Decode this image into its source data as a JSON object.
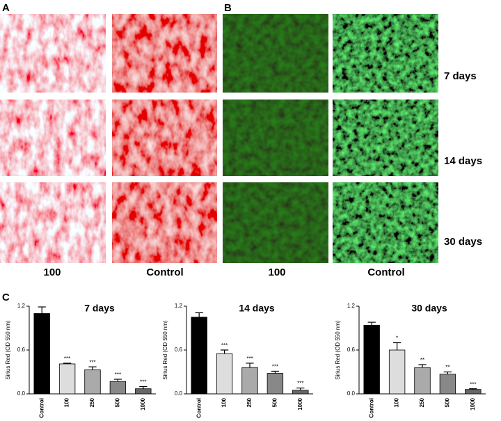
{
  "panel_labels": [
    "A",
    "B",
    "C"
  ],
  "image_rows": [
    "7 days",
    "14 days",
    "30 days"
  ],
  "image_columns": [
    "100",
    "Control",
    "100",
    "Control"
  ],
  "chart_data": [
    {
      "type": "bar",
      "title": "7 days",
      "y_label": "Sirius Red (OD 550 nm)",
      "categories": [
        "Control",
        "100",
        "250",
        "500",
        "1000"
      ],
      "values": [
        1.1,
        0.41,
        0.33,
        0.17,
        0.07
      ],
      "errors": [
        0.09,
        0.01,
        0.04,
        0.03,
        0.03
      ],
      "colors": [
        "#000000",
        "#dddddd",
        "#aaaaaa",
        "#888888",
        "#666666"
      ],
      "annotations": [
        null,
        "***",
        "***",
        "***",
        "***"
      ],
      "ylim": [
        0,
        1.2
      ],
      "yticks": [
        {
          "value": 0,
          "label": "0.0"
        },
        0.6,
        1.2
      ]
    },
    {
      "type": "bar",
      "title": "14 days",
      "y_label": "Sirius Red (OD 550 nm)",
      "categories": [
        "Control",
        "100",
        "250",
        "500",
        "1000"
      ],
      "values": [
        1.05,
        0.55,
        0.36,
        0.28,
        0.05
      ],
      "errors": [
        0.06,
        0.05,
        0.06,
        0.03,
        0.03
      ],
      "colors": [
        "#000000",
        "#dddddd",
        "#aaaaaa",
        "#888888",
        "#666666"
      ],
      "annotations": [
        null,
        "***",
        "***",
        "***",
        "***"
      ],
      "ylim": [
        0,
        1.2
      ],
      "yticks": [
        {
          "value": 0,
          "label": "0.0"
        },
        0.6,
        1.2
      ]
    },
    {
      "type": "bar",
      "title": "30 days",
      "y_label": "Sirius Red (OD 550 nm)",
      "categories": [
        "Control",
        "100",
        "250",
        "500",
        "1000"
      ],
      "values": [
        0.94,
        0.6,
        0.36,
        0.27,
        0.06
      ],
      "errors": [
        0.04,
        0.1,
        0.04,
        0.03,
        0.01
      ],
      "colors": [
        "#000000",
        "#dddddd",
        "#aaaaaa",
        "#888888",
        "#666666"
      ],
      "annotations": [
        null,
        "*",
        "**",
        "**",
        "***"
      ],
      "ylim": [
        0,
        1.2
      ],
      "yticks": [
        {
          "value": 0,
          "label": "0.0"
        },
        0.6,
        1.2
      ]
    }
  ]
}
